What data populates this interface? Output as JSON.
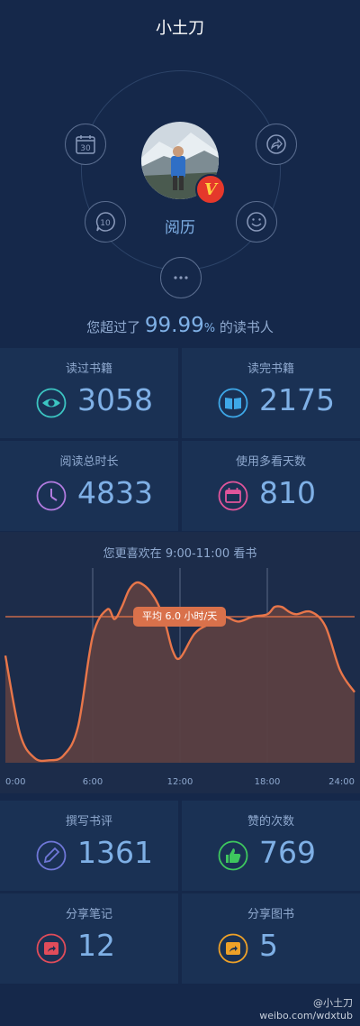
{
  "header": {
    "title": "小土刀"
  },
  "profile": {
    "badge": "V",
    "center_label": "阅历"
  },
  "menu": [
    {
      "name": "calendar-icon",
      "text": "30"
    },
    {
      "name": "share-icon",
      "text": ""
    },
    {
      "name": "comment-icon",
      "text": "10"
    },
    {
      "name": "smiley-icon",
      "text": ""
    },
    {
      "name": "more-icon",
      "text": ""
    }
  ],
  "summary": {
    "prefix": "您超过了",
    "value": "99.99",
    "unit": "%",
    "suffix": "的读书人"
  },
  "stats_top": [
    {
      "label": "读过书籍",
      "value": "3058",
      "icon": "eye-icon",
      "color": "#3cc5c2"
    },
    {
      "label": "读完书籍",
      "value": "2175",
      "icon": "book-icon",
      "color": "#3ea8e8"
    },
    {
      "label": "阅读总时长",
      "value": "4833",
      "icon": "clock-icon",
      "color": "#b27be0"
    },
    {
      "label": "使用多看天数",
      "value": "810",
      "icon": "calendar-day-icon",
      "color": "#e0559b"
    }
  ],
  "chart": {
    "title_prefix": "您更喜欢在",
    "title_range": "9:00-11:00",
    "title_suffix": "看书",
    "average_label": "平均 6.0 小时/天",
    "x_ticks": [
      "0:00",
      "6:00",
      "12:00",
      "18:00",
      "24:00"
    ]
  },
  "chart_data": {
    "type": "area",
    "x": [
      0,
      1,
      2,
      3,
      4,
      5,
      6,
      7,
      7.5,
      8,
      8.5,
      9,
      9.5,
      10,
      10.5,
      11,
      11.5,
      12,
      13,
      14,
      15,
      16,
      17,
      18,
      18.5,
      19,
      19.5,
      20,
      21,
      22,
      23,
      24
    ],
    "values": [
      4.4,
      1.2,
      0.2,
      0.1,
      0.3,
      1.5,
      5.2,
      6.3,
      5.9,
      6.4,
      7.1,
      7.4,
      7.3,
      7.0,
      6.5,
      5.7,
      4.6,
      4.3,
      5.3,
      5.7,
      6.0,
      5.8,
      6.0,
      6.1,
      6.4,
      6.4,
      6.2,
      6.1,
      6.2,
      5.6,
      3.8,
      2.9
    ],
    "xlim": [
      0,
      24
    ],
    "ylim": [
      0,
      8
    ],
    "average": 6.0,
    "colors": {
      "line": "#e8764a",
      "fill": "#5b3f41",
      "average_line": "#e8764a"
    }
  },
  "stats_bottom": [
    {
      "label": "撰写书评",
      "value": "1361",
      "icon": "pencil-icon",
      "color": "#6f77d8"
    },
    {
      "label": "赞的次数",
      "value": "769",
      "icon": "thumbs-up-icon",
      "color": "#3ec75e"
    },
    {
      "label": "分享笔记",
      "value": "12",
      "icon": "share-note-icon",
      "color": "#e04c5a"
    },
    {
      "label": "分享图书",
      "value": "5",
      "icon": "share-book-icon",
      "color": "#eea128"
    }
  ],
  "watermark": {
    "handle": "@小土刀",
    "site": "weibo.com/wdxtub"
  }
}
